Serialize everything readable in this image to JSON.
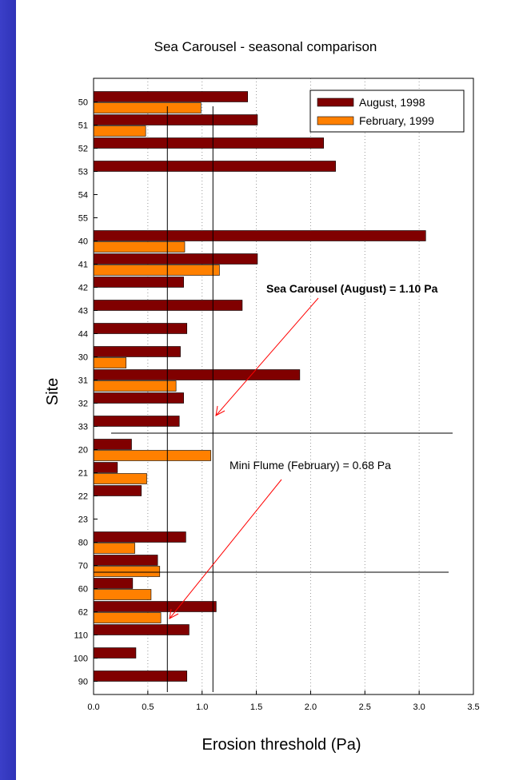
{
  "chart_data": {
    "type": "bar",
    "orientation": "horizontal",
    "title": "Sea Carousel - seasonal comparison",
    "xlabel": "Erosion threshold (Pa)",
    "ylabel": "Site",
    "xlim": [
      0,
      3.5
    ],
    "x_ticks": [
      "0.0",
      "0.5",
      "1.0",
      "1.5",
      "2.0",
      "2.5",
      "3.0",
      "3.5"
    ],
    "x_grid": "dotted",
    "legend_position": "top-right",
    "categories": [
      "50",
      "51",
      "52",
      "53",
      "54",
      "55",
      "40",
      "41",
      "42",
      "43",
      "44",
      "30",
      "31",
      "32",
      "33",
      "20",
      "21",
      "22",
      "23",
      "80",
      "70",
      "60",
      "62",
      "110",
      "100",
      "90"
    ],
    "series": [
      {
        "name": "August, 1998",
        "color": "#800000",
        "values": [
          1.42,
          1.51,
          2.12,
          2.23,
          null,
          null,
          3.06,
          1.51,
          0.83,
          1.37,
          0.86,
          0.8,
          1.9,
          0.83,
          0.79,
          0.35,
          0.22,
          0.44,
          null,
          0.85,
          0.59,
          0.36,
          1.13,
          0.88,
          0.39,
          0.86
        ]
      },
      {
        "name": "February, 1999",
        "color": "#ff8000",
        "values": [
          0.99,
          0.48,
          null,
          null,
          null,
          null,
          0.84,
          1.16,
          null,
          null,
          null,
          0.3,
          0.76,
          null,
          null,
          1.08,
          0.49,
          null,
          null,
          0.38,
          0.61,
          0.53,
          0.62,
          null,
          null,
          null
        ]
      }
    ],
    "reference_lines": [
      {
        "x": 0.68,
        "label": "Mini Flume (February) = 0.68 Pa"
      },
      {
        "x": 1.1,
        "label": "Sea Carousel (August) = 1.10 Pa"
      }
    ],
    "separators_after_site": [
      "33",
      "70"
    ]
  }
}
